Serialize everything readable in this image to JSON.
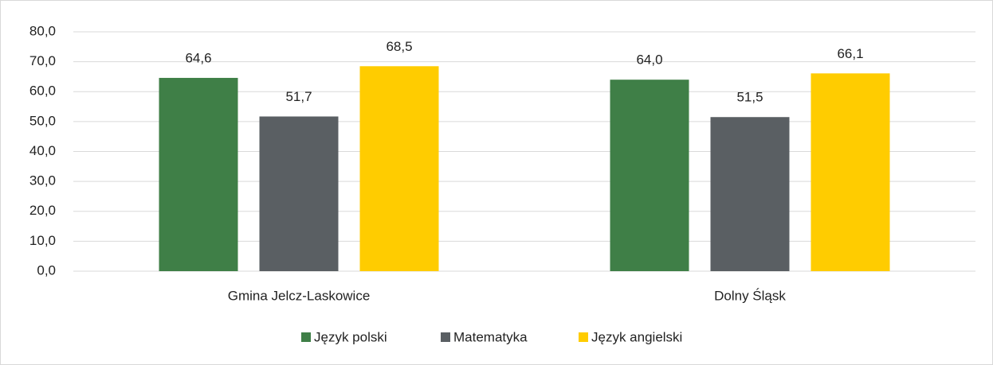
{
  "chart_data": {
    "type": "bar",
    "categories": [
      "Gmina Jelcz-Laskowice",
      "Dolny Śląsk"
    ],
    "series": [
      {
        "name": "Język polski",
        "color": "#3f7f47",
        "values": [
          64.6,
          64.0
        ],
        "value_labels": [
          "64,6",
          "64,0"
        ]
      },
      {
        "name": "Matematyka",
        "color": "#5a5f63",
        "values": [
          51.7,
          51.5
        ],
        "value_labels": [
          "51,7",
          "51,5"
        ]
      },
      {
        "name": "Język angielski",
        "color": "#ffcc00",
        "values": [
          68.5,
          66.1
        ],
        "value_labels": [
          "68,5",
          "66,1"
        ]
      }
    ],
    "ylim": [
      0,
      80
    ],
    "yticks": [
      {
        "value": 0,
        "label": "0,0"
      },
      {
        "value": 10,
        "label": "10,0"
      },
      {
        "value": 20,
        "label": "20,0"
      },
      {
        "value": 30,
        "label": "30,0"
      },
      {
        "value": 40,
        "label": "40,0"
      },
      {
        "value": 50,
        "label": "50,0"
      },
      {
        "value": 60,
        "label": "60,0"
      },
      {
        "value": 70,
        "label": "70,0"
      },
      {
        "value": 80,
        "label": "80,0"
      }
    ],
    "grid": true,
    "legend": "bottom"
  }
}
